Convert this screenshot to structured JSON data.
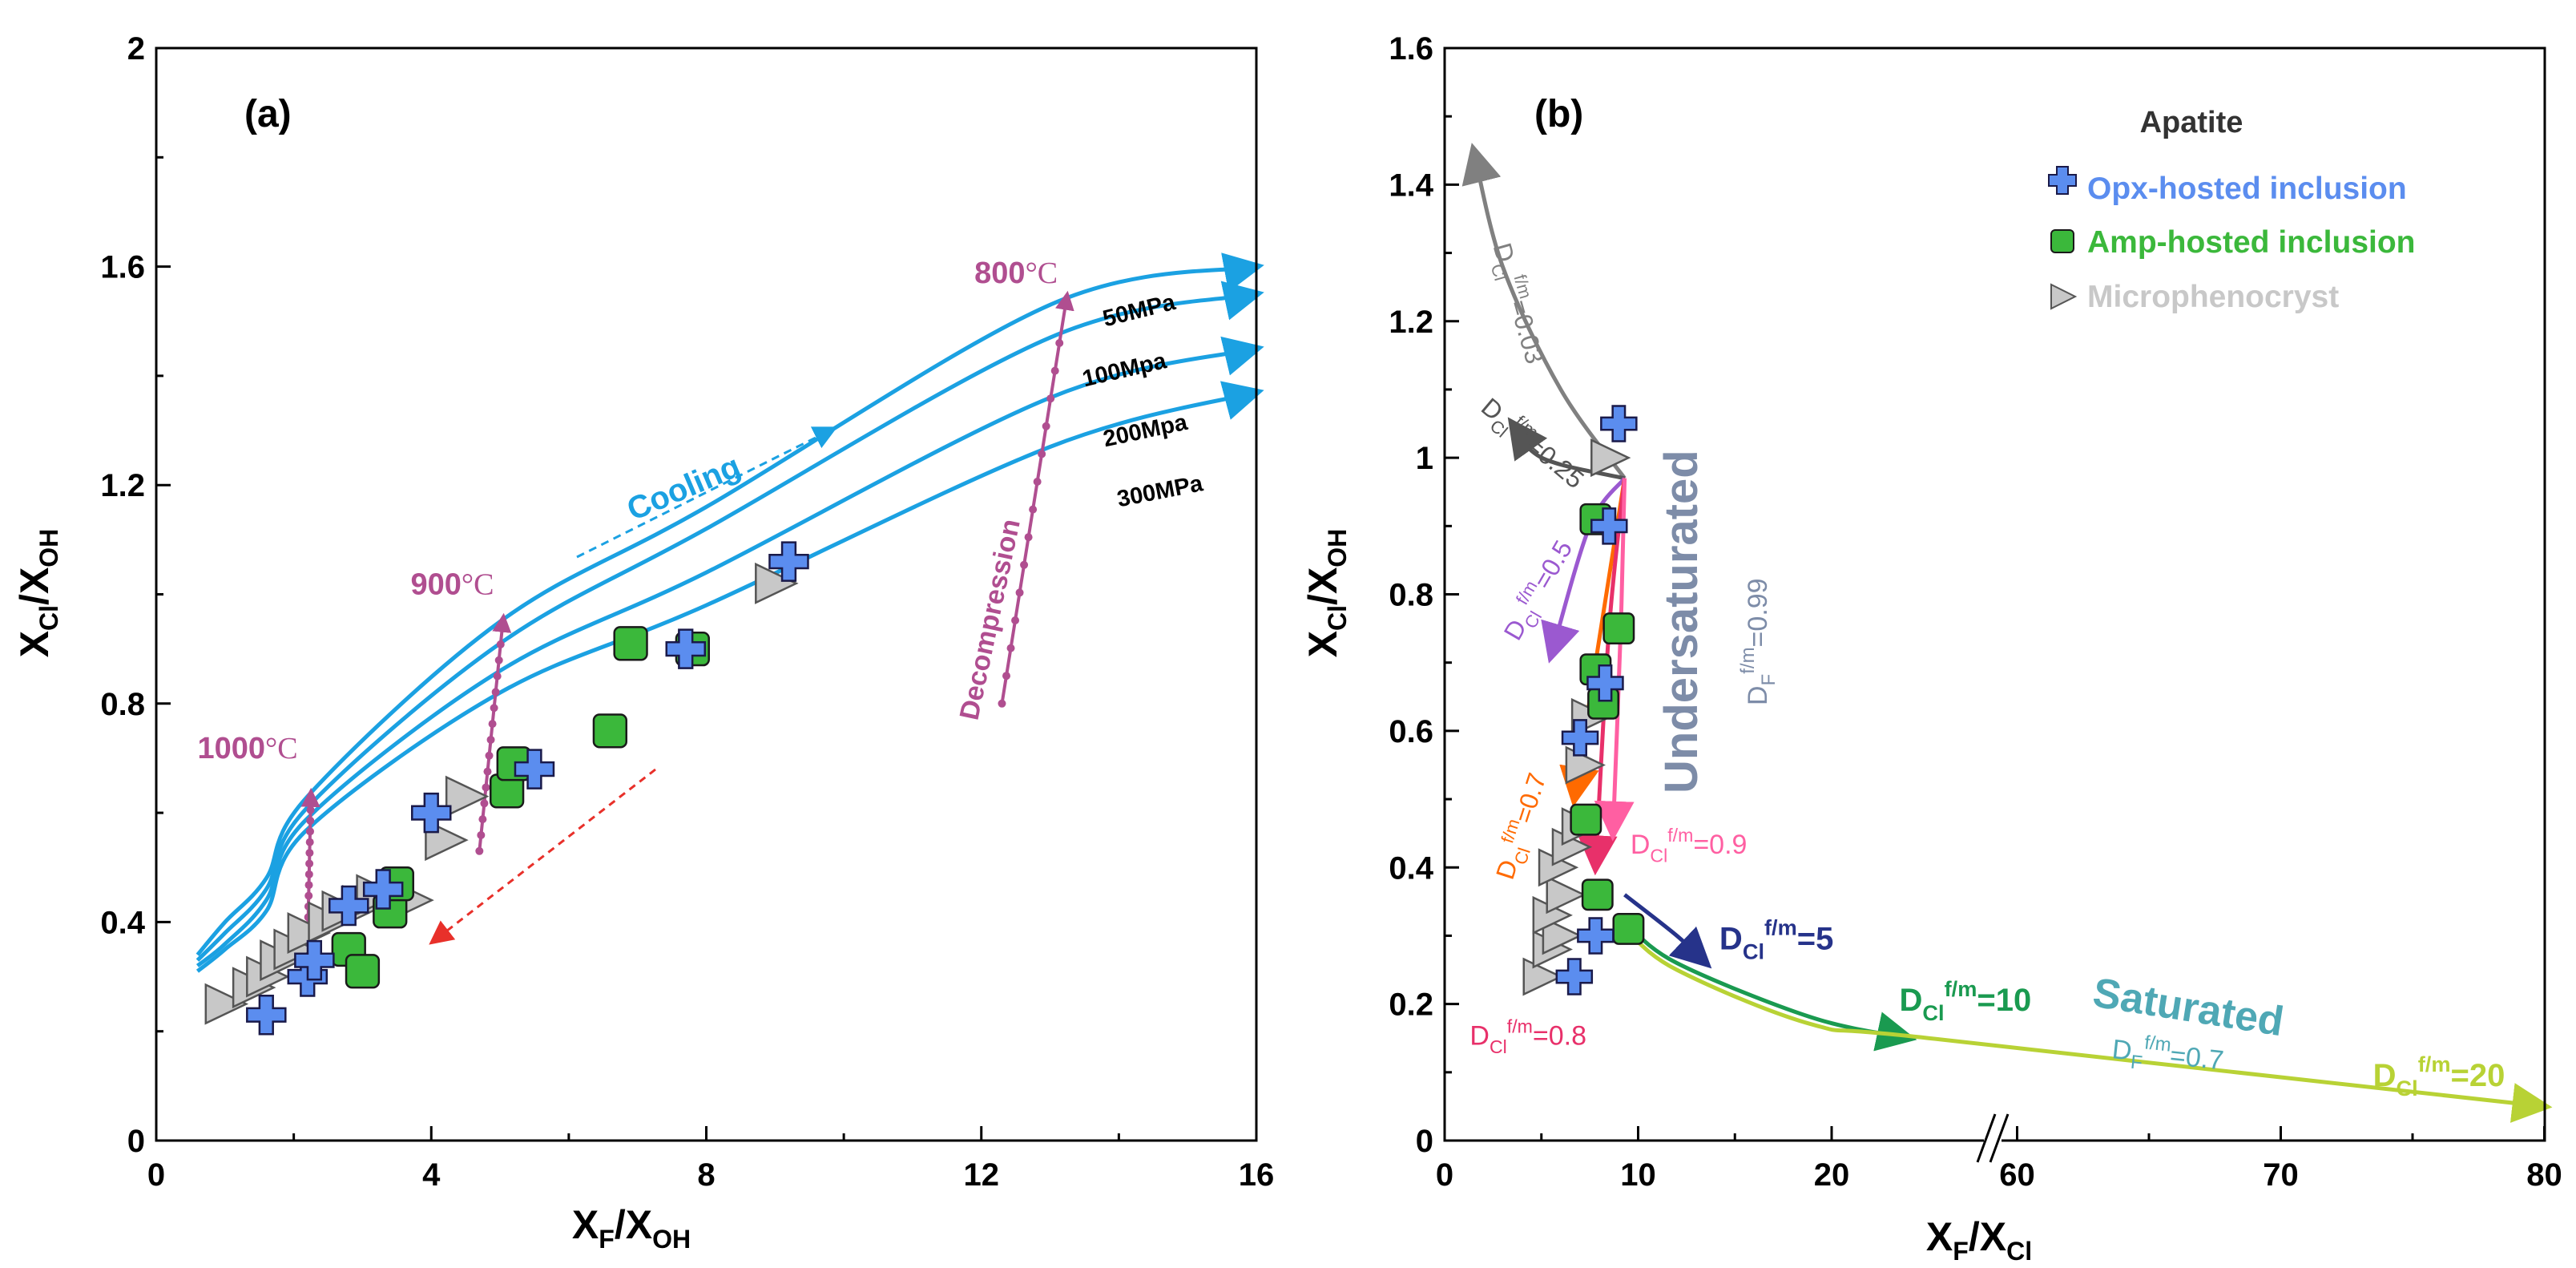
{
  "chart_data": [
    {
      "type": "scatter",
      "panel_label": "(a)",
      "xlabel": {
        "main": "X",
        "sub1": "F",
        "mid": "/X",
        "sub2": "OH"
      },
      "ylabel": {
        "main": "X",
        "sub1": "Cl",
        "mid": "/X",
        "sub2": "OH"
      },
      "xlim": [
        0,
        16
      ],
      "ylim": [
        0,
        2
      ],
      "xticks": [
        0,
        4,
        8,
        12,
        16
      ],
      "xtick_labels": [
        "0",
        "4",
        "8",
        "12",
        "16"
      ],
      "yticks": [
        0,
        0.4,
        0.8,
        1.2,
        1.6,
        2
      ],
      "ytick_labels": [
        "0",
        "0.4",
        "0.8",
        "1.2",
        "1.6",
        "2"
      ],
      "isobars": [
        {
          "label": "50MPa",
          "points": [
            [
              0.6,
              0.34
            ],
            [
              1,
              0.4
            ],
            [
              1.6,
              0.48
            ],
            [
              2.2,
              0.63
            ],
            [
              5,
              0.95
            ],
            [
              8,
              1.16
            ],
            [
              13,
              1.53
            ],
            [
              16,
              1.6
            ]
          ]
        },
        {
          "label": "100Mpa",
          "points": [
            [
              0.6,
              0.33
            ],
            [
              1,
              0.38
            ],
            [
              1.6,
              0.46
            ],
            [
              2.2,
              0.61
            ],
            [
              5,
              0.91
            ],
            [
              8,
              1.12
            ],
            [
              13,
              1.47
            ],
            [
              16,
              1.55
            ]
          ]
        },
        {
          "label": "200Mpa",
          "points": [
            [
              0.6,
              0.32
            ],
            [
              1,
              0.36
            ],
            [
              1.6,
              0.44
            ],
            [
              2.2,
              0.59
            ],
            [
              5,
              0.86
            ],
            [
              8,
              1.04
            ],
            [
              13,
              1.36
            ],
            [
              16,
              1.45
            ]
          ]
        },
        {
          "label": "300MPa",
          "points": [
            [
              0.6,
              0.31
            ],
            [
              1,
              0.35
            ],
            [
              1.6,
              0.42
            ],
            [
              2.2,
              0.57
            ],
            [
              5,
              0.82
            ],
            [
              8,
              0.98
            ],
            [
              13,
              1.27
            ],
            [
              16,
              1.37
            ]
          ]
        }
      ],
      "isotherms": [
        {
          "label": "1000°C",
          "label_parts": [
            "1000",
            "°C"
          ],
          "points": [
            [
              2.2,
              0.35
            ],
            [
              2.25,
              0.64
            ]
          ]
        },
        {
          "label": "900°C",
          "label_parts": [
            "900",
            "°C"
          ],
          "points": [
            [
              4.7,
              0.53
            ],
            [
              5.05,
              0.96
            ]
          ]
        },
        {
          "label": "800°C",
          "label_parts": [
            "800",
            "°C"
          ],
          "points": [
            [
              12.3,
              0.8
            ],
            [
              13.25,
              1.55
            ]
          ]
        }
      ],
      "annotations": {
        "cooling": "Cooling",
        "decompression": "Decompression"
      },
      "series": [
        {
          "name": "Opx-hosted inclusion",
          "marker": "cross",
          "color": "#5b8def",
          "points": [
            [
              1.6,
              0.23
            ],
            [
              2.2,
              0.3
            ],
            [
              2.3,
              0.33
            ],
            [
              2.8,
              0.43
            ],
            [
              3.3,
              0.46
            ],
            [
              4,
              0.6
            ],
            [
              5.5,
              0.68
            ],
            [
              7.7,
              0.9
            ],
            [
              9.2,
              1.06
            ]
          ]
        },
        {
          "name": "Amp-hosted inclusion",
          "marker": "square",
          "color": "#3bb83b",
          "points": [
            [
              2.8,
              0.35
            ],
            [
              3,
              0.31
            ],
            [
              3.4,
              0.42
            ],
            [
              3.5,
              0.47
            ],
            [
              5.1,
              0.64
            ],
            [
              5.2,
              0.69
            ],
            [
              6.6,
              0.75
            ],
            [
              6.9,
              0.91
            ],
            [
              7.8,
              0.9
            ]
          ]
        },
        {
          "name": "Microphenocryst",
          "marker": "triangle",
          "color": "#c8c8c8",
          "points": [
            [
              1,
              0.25
            ],
            [
              1.4,
              0.28
            ],
            [
              1.6,
              0.3
            ],
            [
              1.8,
              0.33
            ],
            [
              2,
              0.35
            ],
            [
              2.2,
              0.38
            ],
            [
              2.5,
              0.4
            ],
            [
              2.7,
              0.42
            ],
            [
              3,
              0.43
            ],
            [
              3.2,
              0.45
            ],
            [
              3.7,
              0.44
            ],
            [
              4.2,
              0.55
            ],
            [
              4.5,
              0.63
            ],
            [
              9,
              1.02
            ]
          ]
        }
      ]
    },
    {
      "type": "scatter",
      "panel_label": "(b)",
      "xlabel": {
        "main": "X",
        "sub1": "F",
        "mid": "/X",
        "sub2": "Cl"
      },
      "ylabel": {
        "main": "X",
        "sub1": "Cl",
        "mid": "/X",
        "sub2": "OH"
      },
      "x_axis_break": "broken axis between 25 and 60",
      "xtick_labels": [
        "0",
        "10",
        "20",
        "60",
        "70",
        "80"
      ],
      "ylim": [
        0,
        1.6
      ],
      "yticks": [
        0,
        0.2,
        0.4,
        0.6,
        0.8,
        1,
        1.2,
        1.4,
        1.6
      ],
      "ytick_labels": [
        "0",
        "0.2",
        "0.4",
        "0.6",
        "0.8",
        "1",
        "1.2",
        "1.4",
        "1.6"
      ],
      "legend": {
        "title": "Apatite",
        "position": "top-right",
        "entries": [
          "Opx-hosted inclusion",
          "Amp-hosted inclusion",
          "Microphenocryst"
        ]
      },
      "region_labels": {
        "undersaturated": "Undersaturated",
        "saturated": "Saturated",
        "df_undersat": {
          "main": "D",
          "sub": "F",
          "sup": "f/m",
          "val": "=0.99"
        },
        "df_sat": {
          "main": "D",
          "sub": "F",
          "sup": "f/m",
          "val": "=0.7"
        }
      },
      "fractionation_paths": [
        {
          "D_Cl": "0.03",
          "color": "#808080",
          "points": [
            [
              9.3,
              0.97
            ],
            [
              6,
              1.1
            ],
            [
              3,
              1.28
            ],
            [
              1.5,
              1.45
            ]
          ]
        },
        {
          "D_Cl": "0.25",
          "color": "#555555",
          "points": [
            [
              9.3,
              0.97
            ],
            [
              6,
              0.99
            ],
            [
              4.5,
              1.01
            ],
            [
              3.5,
              1.05
            ]
          ]
        },
        {
          "D_Cl": "0.5",
          "color": "#9b59d0",
          "points": [
            [
              9.3,
              0.97
            ],
            [
              7.5,
              0.9
            ],
            [
              5.5,
              0.71
            ]
          ]
        },
        {
          "D_Cl": "0.7",
          "color": "#ff6a00",
          "points": [
            [
              9.3,
              0.97
            ],
            [
              7.8,
              0.7
            ],
            [
              6.7,
              0.5
            ]
          ]
        },
        {
          "D_Cl": "0.8",
          "color": "#e8306a",
          "points": [
            [
              9.3,
              0.97
            ],
            [
              8.5,
              0.75
            ],
            [
              7.8,
              0.4
            ]
          ]
        },
        {
          "D_Cl": "0.9",
          "color": "#ff5fa2",
          "points": [
            [
              9.3,
              0.97
            ],
            [
              9.1,
              0.75
            ],
            [
              8.7,
              0.45
            ]
          ]
        },
        {
          "D_Cl": "5",
          "color": "#26338a",
          "points": [
            [
              9.3,
              0.36
            ],
            [
              12,
              0.3
            ],
            [
              13.5,
              0.26
            ]
          ]
        },
        {
          "D_Cl": "10",
          "color": "#1a9a50",
          "points": [
            [
              9.3,
              0.32
            ],
            [
              12,
              0.26
            ],
            [
              19,
              0.18
            ],
            [
              24,
              0.15
            ]
          ]
        },
        {
          "D_Cl": "20",
          "color": "#b8d235",
          "points": [
            [
              9.3,
              0.31
            ],
            [
              12,
              0.25
            ],
            [
              19,
              0.17
            ],
            [
              25,
              0.15
            ],
            [
              80,
              0.05
            ]
          ]
        }
      ],
      "path_label_prefix": {
        "main": "D",
        "sub": "Cl",
        "sup": "f/m"
      },
      "series": [
        {
          "name": "Opx-hosted inclusion",
          "marker": "cross",
          "color": "#5b8def",
          "points": [
            [
              6.7,
              0.24
            ],
            [
              7.8,
              0.3
            ],
            [
              7,
              0.59
            ],
            [
              8.3,
              0.67
            ],
            [
              8.5,
              0.9
            ],
            [
              9,
              1.05
            ]
          ]
        },
        {
          "name": "Amp-hosted inclusion",
          "marker": "square",
          "color": "#3bb83b",
          "points": [
            [
              9.5,
              0.31
            ],
            [
              7.9,
              0.36
            ],
            [
              7.3,
              0.47
            ],
            [
              8.2,
              0.64
            ],
            [
              7.8,
              0.69
            ],
            [
              9,
              0.75
            ],
            [
              7.8,
              0.91
            ]
          ]
        },
        {
          "name": "Microphenocryst",
          "marker": "triangle",
          "color": "#c8c8c8",
          "points": [
            [
              5,
              0.24
            ],
            [
              5.5,
              0.28
            ],
            [
              6,
              0.3
            ],
            [
              5.5,
              0.33
            ],
            [
              6.2,
              0.36
            ],
            [
              5.8,
              0.4
            ],
            [
              6.5,
              0.43
            ],
            [
              7,
              0.46
            ],
            [
              7.2,
              0.55
            ],
            [
              7.5,
              0.62
            ],
            [
              8.5,
              1
            ]
          ]
        }
      ]
    }
  ]
}
